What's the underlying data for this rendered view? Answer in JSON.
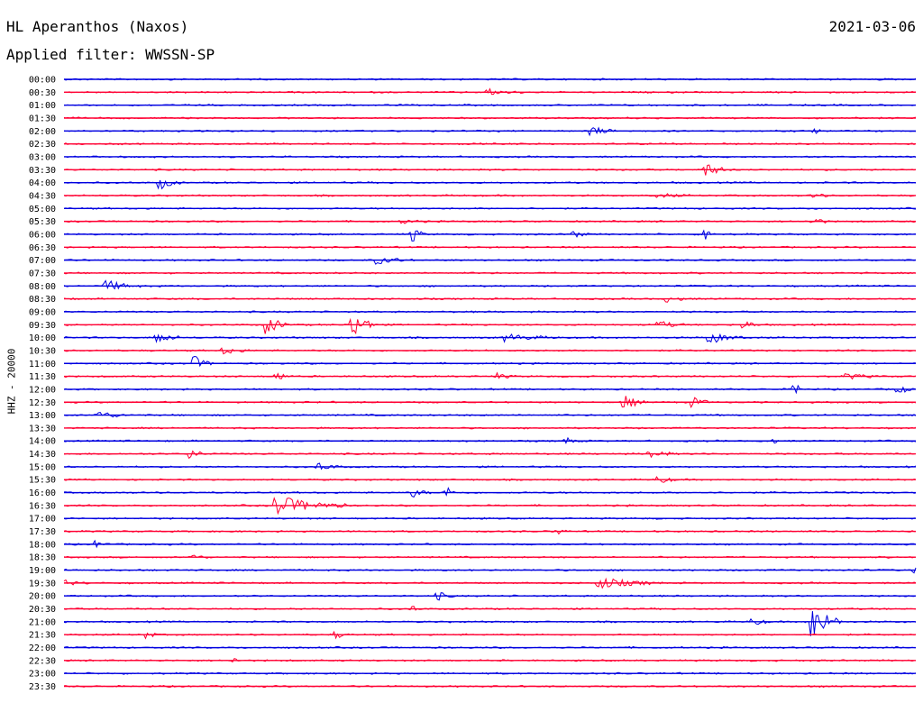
{
  "header": {
    "station": "HL Aperanthos (Naxos)",
    "date": "2021-03-06",
    "filter": "Applied filter: WWSSN-SP"
  },
  "channel_label": "HHZ - 20000",
  "colors": {
    "odd_line": "#0000e0",
    "even_line": "#ff0033"
  },
  "chart_data": {
    "type": "line",
    "title": "HL Aperanthos (Naxos)",
    "ylabel": "HHZ - 20000",
    "xlabel": "",
    "row_labels": [
      "00:00",
      "00:30",
      "01:00",
      "01:30",
      "02:00",
      "02:30",
      "03:00",
      "03:30",
      "04:00",
      "04:30",
      "05:00",
      "05:30",
      "06:00",
      "06:30",
      "07:00",
      "07:30",
      "08:00",
      "08:30",
      "09:00",
      "09:30",
      "10:00",
      "10:30",
      "11:00",
      "11:30",
      "12:00",
      "12:30",
      "13:00",
      "13:30",
      "14:00",
      "14:30",
      "15:00",
      "15:30",
      "16:00",
      "16:30",
      "17:00",
      "17:30",
      "18:00",
      "18:30",
      "19:00",
      "19:30",
      "20:00",
      "20:30",
      "21:00",
      "21:30",
      "22:00",
      "22:30",
      "23:00",
      "23:30"
    ],
    "trace_colors": [
      "blue",
      "red"
    ],
    "events": [
      {
        "row": 1,
        "x": 0.5,
        "amp": 3,
        "len": 0.04
      },
      {
        "row": 4,
        "x": 0.62,
        "amp": 5,
        "len": 0.03
      },
      {
        "row": 4,
        "x": 0.88,
        "amp": 3,
        "len": 0.02
      },
      {
        "row": 7,
        "x": 0.755,
        "amp": 7,
        "len": 0.03
      },
      {
        "row": 8,
        "x": 0.115,
        "amp": 6,
        "len": 0.025
      },
      {
        "row": 9,
        "x": 0.7,
        "amp": 2,
        "len": 0.04
      },
      {
        "row": 9,
        "x": 0.88,
        "amp": 3,
        "len": 0.02
      },
      {
        "row": 11,
        "x": 0.4,
        "amp": 2,
        "len": 0.03
      },
      {
        "row": 11,
        "x": 0.88,
        "amp": 4,
        "len": 0.02
      },
      {
        "row": 12,
        "x": 0.41,
        "amp": 8,
        "len": 0.015
      },
      {
        "row": 12,
        "x": 0.6,
        "amp": 3,
        "len": 0.02
      },
      {
        "row": 12,
        "x": 0.755,
        "amp": 10,
        "len": 0.012
      },
      {
        "row": 14,
        "x": 0.37,
        "amp": 4,
        "len": 0.04
      },
      {
        "row": 16,
        "x": 0.05,
        "amp": 6,
        "len": 0.04
      },
      {
        "row": 17,
        "x": 0.71,
        "amp": 3,
        "len": 0.03
      },
      {
        "row": 19,
        "x": 0.24,
        "amp": 10,
        "len": 0.025
      },
      {
        "row": 19,
        "x": 0.34,
        "amp": 14,
        "len": 0.03
      },
      {
        "row": 19,
        "x": 0.7,
        "amp": 4,
        "len": 0.03
      },
      {
        "row": 19,
        "x": 0.8,
        "amp": 4,
        "len": 0.02
      },
      {
        "row": 20,
        "x": 0.11,
        "amp": 6,
        "len": 0.03
      },
      {
        "row": 20,
        "x": 0.52,
        "amp": 4,
        "len": 0.06
      },
      {
        "row": 20,
        "x": 0.76,
        "amp": 6,
        "len": 0.04
      },
      {
        "row": 21,
        "x": 0.19,
        "amp": 4,
        "len": 0.03
      },
      {
        "row": 22,
        "x": 0.155,
        "amp": 7,
        "len": 0.02
      },
      {
        "row": 23,
        "x": 0.25,
        "amp": 6,
        "len": 0.015
      },
      {
        "row": 23,
        "x": 0.51,
        "amp": 3,
        "len": 0.02
      },
      {
        "row": 23,
        "x": 0.92,
        "amp": 3,
        "len": 0.04
      },
      {
        "row": 24,
        "x": 0.86,
        "amp": 9,
        "len": 0.008
      },
      {
        "row": 24,
        "x": 0.98,
        "amp": 6,
        "len": 0.015
      },
      {
        "row": 25,
        "x": 0.66,
        "amp": 7,
        "len": 0.025
      },
      {
        "row": 25,
        "x": 0.74,
        "amp": 5,
        "len": 0.02
      },
      {
        "row": 26,
        "x": 0.04,
        "amp": 4,
        "len": 0.04
      },
      {
        "row": 28,
        "x": 0.59,
        "amp": 3,
        "len": 0.02
      },
      {
        "row": 28,
        "x": 0.83,
        "amp": 5,
        "len": 0.01
      },
      {
        "row": 29,
        "x": 0.15,
        "amp": 5,
        "len": 0.02
      },
      {
        "row": 29,
        "x": 0.69,
        "amp": 4,
        "len": 0.03
      },
      {
        "row": 30,
        "x": 0.3,
        "amp": 4,
        "len": 0.03
      },
      {
        "row": 31,
        "x": 0.7,
        "amp": 4,
        "len": 0.02
      },
      {
        "row": 32,
        "x": 0.41,
        "amp": 5,
        "len": 0.02
      },
      {
        "row": 32,
        "x": 0.45,
        "amp": 7,
        "len": 0.01
      },
      {
        "row": 33,
        "x": 0.25,
        "amp": 11,
        "len": 0.08
      },
      {
        "row": 35,
        "x": 0.58,
        "amp": 4,
        "len": 0.01
      },
      {
        "row": 36,
        "x": 0.035,
        "amp": 4,
        "len": 0.02
      },
      {
        "row": 37,
        "x": 0.15,
        "amp": 3,
        "len": 0.02
      },
      {
        "row": 38,
        "x": 1.0,
        "amp": 4,
        "len": 0.03
      },
      {
        "row": 39,
        "x": 0.0,
        "amp": 3,
        "len": 0.03
      },
      {
        "row": 39,
        "x": 0.63,
        "amp": 6,
        "len": 0.07
      },
      {
        "row": 40,
        "x": 0.44,
        "amp": 4,
        "len": 0.02
      },
      {
        "row": 41,
        "x": 0.41,
        "amp": 3,
        "len": 0.01
      },
      {
        "row": 42,
        "x": 0.81,
        "amp": 4,
        "len": 0.02
      },
      {
        "row": 42,
        "x": 0.88,
        "amp": 20,
        "len": 0.035
      },
      {
        "row": 43,
        "x": 0.1,
        "amp": 4,
        "len": 0.01
      },
      {
        "row": 43,
        "x": 0.32,
        "amp": 4,
        "len": 0.015
      },
      {
        "row": 45,
        "x": 0.2,
        "amp": 3,
        "len": 0.01
      }
    ]
  }
}
